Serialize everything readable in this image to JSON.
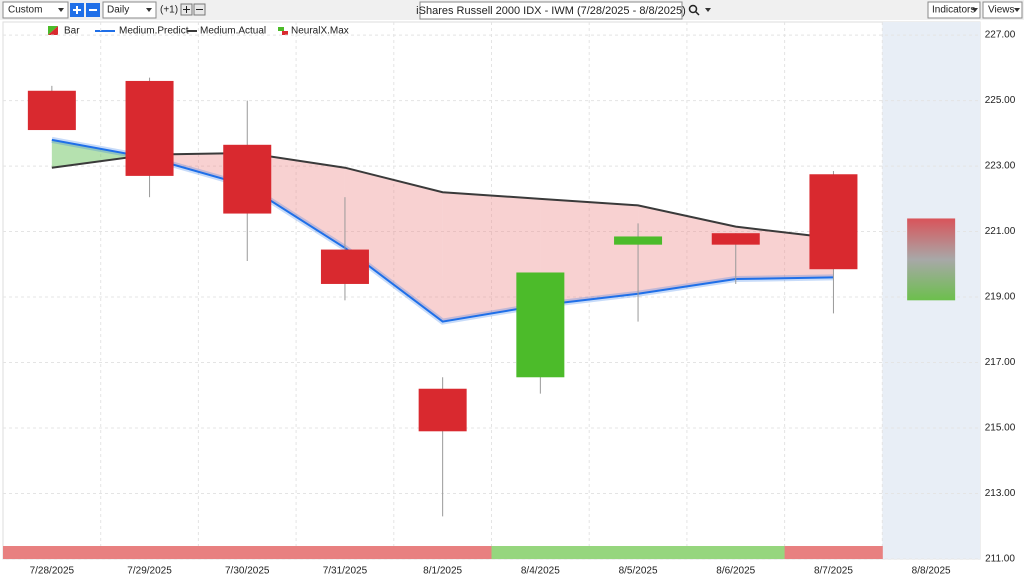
{
  "toolbar": {
    "range": "Custom",
    "interval": "Daily",
    "offset": "(+1)",
    "indicators": "Indicators",
    "views": "Views"
  },
  "chart_data": {
    "type": "candlestick",
    "title": "iShares Russell 2000 IDX - IWM (7/28/2025 - 8/8/2025)",
    "categories": [
      "7/28/2025",
      "7/29/2025",
      "7/30/2025",
      "7/31/2025",
      "8/1/2025",
      "8/4/2025",
      "8/5/2025",
      "8/6/2025",
      "8/7/2025",
      "8/8/2025"
    ],
    "candles": {
      "name": "Bar",
      "up_color": "#4cbb2a",
      "down_color": "#d9292f",
      "open": [
        225.3,
        225.6,
        223.65,
        220.45,
        216.2,
        216.55,
        220.6,
        220.95,
        222.75,
        null
      ],
      "high": [
        225.45,
        225.7,
        225.0,
        222.05,
        216.55,
        219.75,
        221.25,
        220.95,
        222.85,
        null
      ],
      "low": [
        224.1,
        222.05,
        220.1,
        218.9,
        212.3,
        216.05,
        218.25,
        219.4,
        218.5,
        null
      ],
      "close": [
        224.1,
        222.7,
        221.55,
        219.4,
        214.9,
        219.75,
        220.85,
        220.6,
        219.85,
        null
      ]
    },
    "series": [
      {
        "name": "Medium.Predict",
        "color": "#1f6fe8",
        "values": [
          223.8,
          223.25,
          222.4,
          220.5,
          218.25,
          218.75,
          219.1,
          219.55,
          219.6,
          null
        ]
      },
      {
        "name": "Medium.Actual",
        "color": "#3a3a3a",
        "values": [
          222.95,
          223.35,
          223.4,
          222.95,
          222.2,
          222.0,
          221.8,
          221.15,
          220.8,
          null
        ]
      }
    ],
    "forecast": {
      "name": "NeuralX.Max",
      "high": [
        null,
        null,
        null,
        null,
        null,
        null,
        null,
        null,
        null,
        221.4
      ],
      "low": [
        null,
        null,
        null,
        null,
        null,
        null,
        null,
        null,
        null,
        218.9
      ]
    },
    "strip_colors": [
      "#e88080",
      "#e88080",
      "#e88080",
      "#e88080",
      "#e88080",
      "#96d67e",
      "#96d67e",
      "#96d67e",
      "#e88080",
      null
    ],
    "ylim": [
      211,
      227.4
    ],
    "yticks": [
      {
        "value": 211,
        "label": "211.00"
      },
      {
        "value": 213,
        "label": "213.00"
      },
      {
        "value": 215,
        "label": "215.00"
      },
      {
        "value": 217,
        "label": "217.00"
      },
      {
        "value": 219,
        "label": "219.00"
      },
      {
        "value": 221,
        "label": "221.00"
      },
      {
        "value": 223,
        "label": "223.00"
      },
      {
        "value": 225,
        "label": "225.00"
      },
      {
        "value": 227,
        "label": "227.00"
      }
    ],
    "grid": true
  }
}
